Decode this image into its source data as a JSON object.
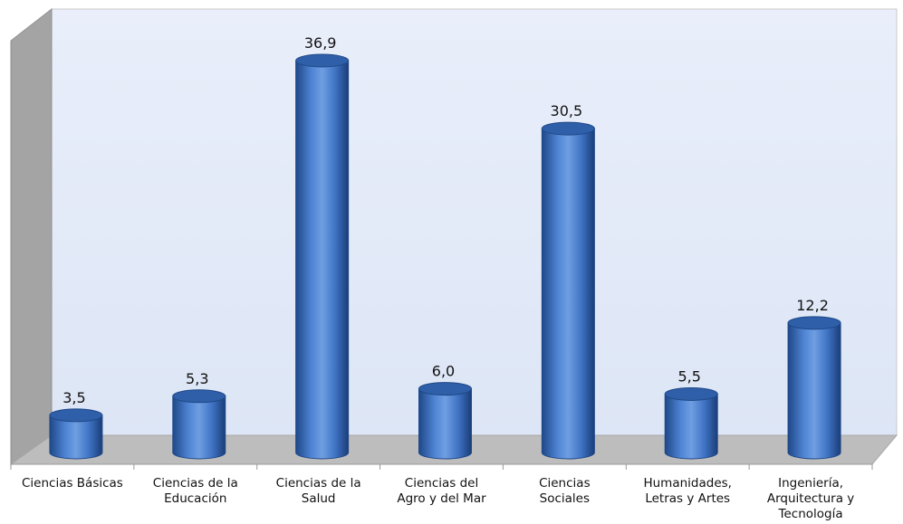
{
  "chart_data": {
    "type": "bar",
    "style": "3d-cylinder",
    "categories": [
      [
        "Ciencias Básicas"
      ],
      [
        "Ciencias de la",
        "Educación"
      ],
      [
        "Ciencias de la",
        "Salud"
      ],
      [
        "Ciencias del",
        "Agro y del Mar"
      ],
      [
        "Ciencias",
        "Sociales"
      ],
      [
        "Humanidades,",
        "Letras y Artes"
      ],
      [
        "Ingeniería,",
        "Arquitectura y",
        "Tecnología"
      ]
    ],
    "values": [
      3.5,
      5.3,
      36.9,
      6.0,
      30.5,
      5.5,
      12.2
    ],
    "value_labels": [
      "3,5",
      "5,3",
      "36,9",
      "6,0",
      "30,5",
      "5,5",
      "12,2"
    ],
    "ylim": [
      0,
      40
    ],
    "grid": false,
    "legend": "none",
    "colors": {
      "bar": "#3f73c4",
      "bar_dark": "#1f4888",
      "bar_light": "#8fb4ea",
      "back_wall": "#e5ecf9",
      "floor": "#b9b9b9",
      "side_wall": "#9c9c9c"
    }
  }
}
